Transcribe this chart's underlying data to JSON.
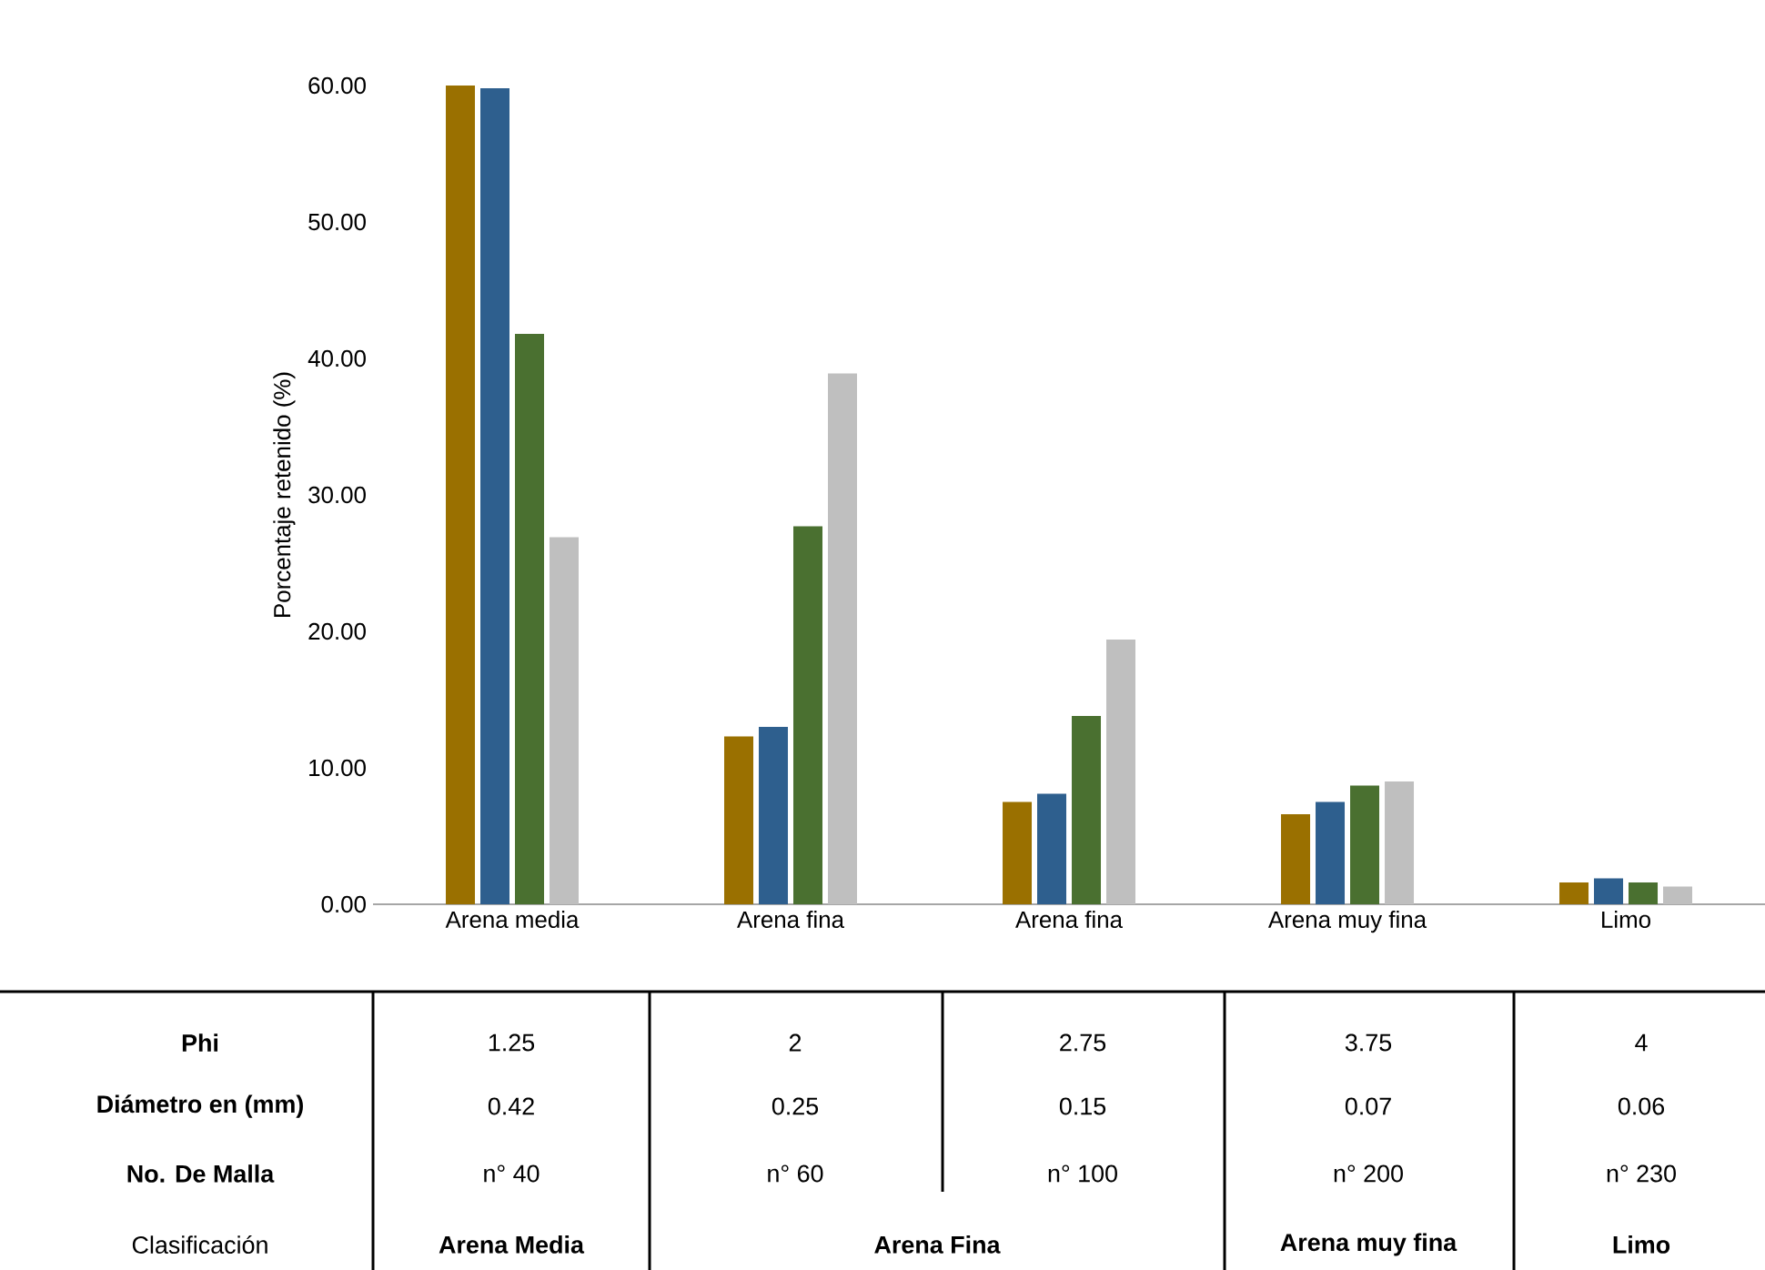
{
  "chart_data": {
    "type": "bar",
    "ylabel": "Porcentaje retenido (%)",
    "categories": [
      "Arena media",
      "Arena fina",
      "Arena fina",
      "Arena muy fina",
      "Limo"
    ],
    "series": [
      {
        "color": "#9a7000",
        "values": [
          60.0,
          12.3,
          7.5,
          6.6,
          1.6
        ]
      },
      {
        "color": "#2e5f8e",
        "values": [
          59.8,
          13.0,
          8.1,
          7.5,
          1.9
        ]
      },
      {
        "color": "#4a7030",
        "values": [
          41.8,
          27.7,
          13.8,
          8.7,
          1.6
        ]
      },
      {
        "color": "#bfbfbf",
        "values": [
          26.9,
          38.9,
          19.4,
          9.0,
          1.3
        ]
      }
    ],
    "ylim": [
      0,
      60
    ],
    "yticks": [
      {
        "value": 0,
        "label": "0.00"
      },
      {
        "value": 10,
        "label": "10.00"
      },
      {
        "value": 20,
        "label": "20.00"
      },
      {
        "value": 30,
        "label": "30.00"
      },
      {
        "value": 40,
        "label": "40.00"
      },
      {
        "value": 50,
        "label": "50.00"
      },
      {
        "value": 60,
        "label": "60.00"
      }
    ],
    "annotations": [
      "Phi",
      "1.25",
      "2",
      "2.75",
      "3.75",
      "4",
      "Diámetro en (mm)",
      "0.42",
      "0.25",
      "0.15",
      "0.07",
      "0.06",
      "No. De Malla",
      "n° 40",
      "n° 60",
      "n° 100",
      "n° 200",
      "n° 230",
      "Clasificación",
      "Arena Media",
      "Arena Fina",
      "Arena muy fina",
      "Limo"
    ]
  }
}
